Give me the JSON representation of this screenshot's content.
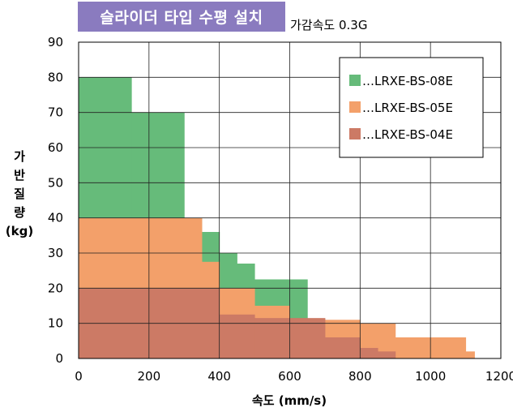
{
  "chart_data": {
    "type": "area",
    "title": "슬라이더 타입 수평 설치",
    "subtitle": "가감속도 0.3G",
    "xlabel": "속도 (mm/s)",
    "ylabel_lines": [
      "가",
      "반",
      "질",
      "량",
      "(kg)"
    ],
    "xlim": [
      0,
      1200
    ],
    "ylim": [
      0,
      90
    ],
    "xticks": [
      0,
      200,
      400,
      600,
      800,
      1000,
      1200
    ],
    "yticks": [
      0,
      10,
      20,
      30,
      40,
      50,
      60,
      70,
      80,
      90
    ],
    "grid": true,
    "legend_position": "top-right",
    "series": [
      {
        "name": "…LRXE-BS-08E",
        "color": "#66bb7a",
        "steps": [
          [
            0,
            150,
            80
          ],
          [
            150,
            300,
            70
          ],
          [
            300,
            350,
            40
          ],
          [
            350,
            400,
            36
          ],
          [
            400,
            450,
            30
          ],
          [
            450,
            500,
            27
          ],
          [
            500,
            650,
            22.5
          ],
          [
            650,
            700,
            11
          ]
        ]
      },
      {
        "name": "…LRXE-BS-05E",
        "color": "#f3a06a",
        "steps": [
          [
            0,
            350,
            40
          ],
          [
            350,
            400,
            27.5
          ],
          [
            400,
            500,
            20
          ],
          [
            500,
            600,
            15
          ],
          [
            600,
            700,
            11
          ],
          [
            700,
            800,
            11
          ],
          [
            800,
            900,
            10
          ],
          [
            900,
            1100,
            6
          ],
          [
            1100,
            1125,
            2
          ]
        ]
      },
      {
        "name": "…LRXE-BS-04E",
        "color": "#cc7a65",
        "steps": [
          [
            0,
            400,
            20
          ],
          [
            400,
            500,
            12.5
          ],
          [
            500,
            600,
            11.5
          ],
          [
            600,
            700,
            11.5
          ],
          [
            700,
            800,
            6
          ],
          [
            800,
            850,
            3
          ],
          [
            850,
            900,
            2
          ]
        ]
      }
    ]
  }
}
